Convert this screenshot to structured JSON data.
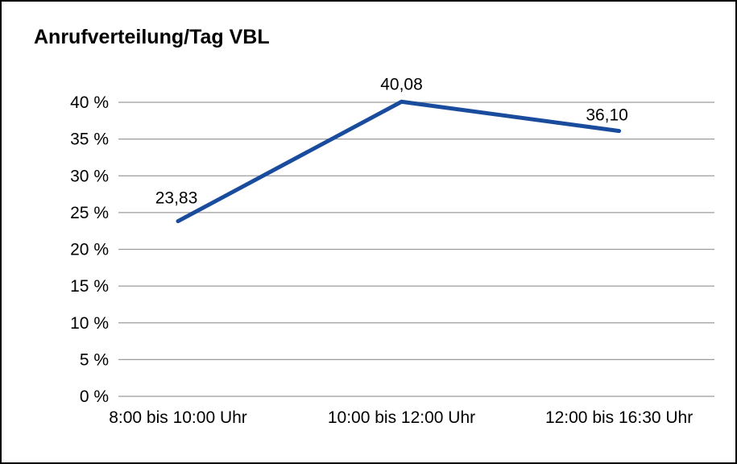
{
  "chart_data": {
    "type": "line",
    "title": "Anrufverteilung/Tag VBL",
    "categories": [
      "8:00 bis 10:00 Uhr",
      "10:00 bis 12:00 Uhr",
      "12:00 bis 16:30 Uhr"
    ],
    "values": [
      23.83,
      40.08,
      36.1
    ],
    "value_labels": [
      "23,83",
      "40,08",
      "36,10"
    ],
    "xlabel": "",
    "ylabel": "",
    "ylim": [
      0,
      40
    ],
    "y_ticks": [
      0,
      5,
      10,
      15,
      20,
      25,
      30,
      35,
      40
    ],
    "y_tick_labels": [
      "0 %",
      "5 %",
      "10 %",
      "15 %",
      "20 %",
      "25 %",
      "30 %",
      "35 %",
      "40 %"
    ],
    "grid": true,
    "legend_position": "none",
    "colors": {
      "line": "#1a4c9d",
      "grid": "#9c9c9c",
      "axis_text": "#000000",
      "border": "#000000"
    }
  }
}
